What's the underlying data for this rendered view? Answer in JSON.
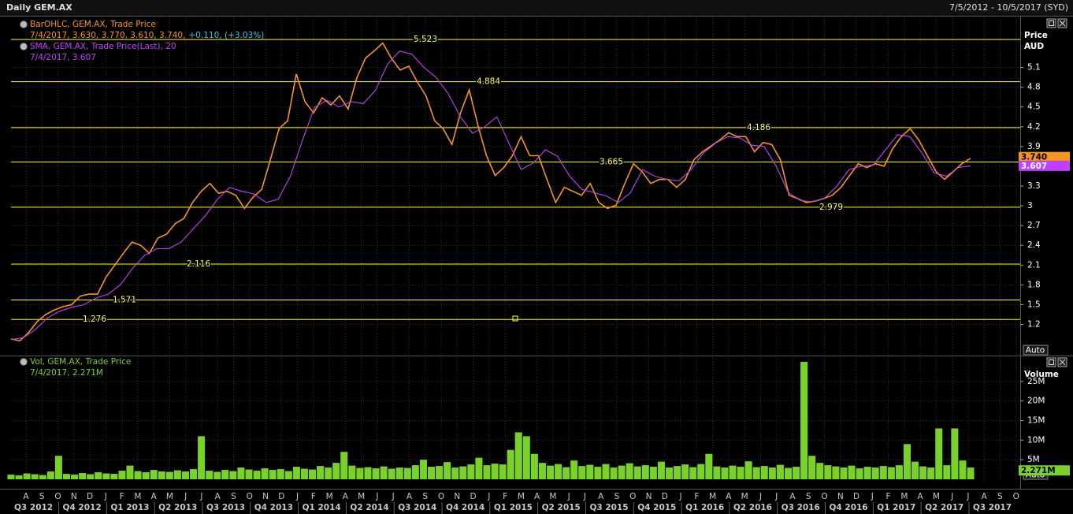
{
  "header": {
    "title": "Daily GEM.AX",
    "range": "7/5/2012 - 10/5/2017 (SYD)"
  },
  "x_axis": {
    "months": [
      "A",
      "S",
      "O",
      "N",
      "D",
      "J",
      "F",
      "M",
      "A",
      "M",
      "J",
      "J",
      "A",
      "S",
      "O",
      "N",
      "D",
      "J",
      "F",
      "M",
      "A",
      "M",
      "J",
      "J",
      "A",
      "S",
      "O",
      "N",
      "D",
      "J",
      "F",
      "M",
      "A",
      "M",
      "J",
      "J",
      "A",
      "S",
      "O",
      "N",
      "D",
      "J",
      "F",
      "M",
      "A",
      "M",
      "J",
      "J",
      "A",
      "S",
      "O",
      "N",
      "D",
      "J",
      "F",
      "M",
      "A",
      "M",
      "J",
      "J",
      "A",
      "S",
      "O"
    ],
    "quarters": [
      "Q3 2012",
      "Q4 2012",
      "Q1 2013",
      "Q2 2013",
      "Q3 2013",
      "Q4 2013",
      "Q1 2014",
      "Q2 2014",
      "Q3 2014",
      "Q4 2014",
      "Q1 2015",
      "Q2 2015",
      "Q3 2015",
      "Q4 2015",
      "Q1 2016",
      "Q2 2016",
      "Q3 2016",
      "Q4 2016",
      "Q1 2017",
      "Q2 2017",
      "Q3 2017"
    ]
  },
  "chart_data": [
    {
      "type": "line",
      "series": [
        {
          "name": "BarOHLC, GEM.AX, Trade Price",
          "color": "#f7941d",
          "legend_detail": "7/4/2017, 3.630, 3.770, 3.610, 3.740,",
          "change": "+0.110, (+3.03%)",
          "change_color": "#36c8e8",
          "values": [
            0.98,
            0.95,
            1.07,
            1.24,
            1.35,
            1.42,
            1.47,
            1.5,
            1.63,
            1.66,
            1.66,
            1.92,
            2.1,
            2.28,
            2.45,
            2.4,
            2.28,
            2.51,
            2.57,
            2.73,
            2.81,
            3.05,
            3.22,
            3.34,
            3.19,
            3.22,
            3.16,
            2.96,
            3.13,
            3.25,
            3.7,
            4.17,
            4.29,
            5.0,
            4.58,
            4.41,
            4.64,
            4.53,
            4.67,
            4.47,
            4.94,
            5.24,
            5.35,
            5.47,
            5.24,
            5.06,
            5.12,
            4.88,
            4.67,
            4.29,
            4.17,
            3.93,
            4.41,
            4.76,
            4.23,
            3.76,
            3.46,
            3.58,
            3.76,
            4.05,
            3.76,
            3.76,
            3.4,
            3.05,
            3.28,
            3.22,
            3.16,
            3.34,
            3.05,
            2.96,
            3.01,
            3.34,
            3.64,
            3.52,
            3.34,
            3.4,
            3.4,
            3.28,
            3.4,
            3.7,
            3.82,
            3.91,
            4.0,
            4.11,
            4.05,
            4.05,
            3.82,
            3.96,
            3.93,
            3.7,
            3.16,
            3.11,
            3.05,
            3.07,
            3.11,
            3.16,
            3.28,
            3.46,
            3.64,
            3.58,
            3.64,
            3.6,
            3.87,
            4.05,
            4.17,
            4.0,
            3.76,
            3.52,
            3.4,
            3.52,
            3.64,
            3.72
          ]
        },
        {
          "name": "SMA, GEM.AX, Trade Price(Last), 20",
          "color": "#c040ff",
          "legend_detail": "7/4/2017, 3.607",
          "values": [
            0.97,
            1.0,
            1.12,
            1.3,
            1.4,
            1.46,
            1.5,
            1.6,
            1.66,
            1.8,
            2.05,
            2.25,
            2.35,
            2.35,
            2.45,
            2.65,
            2.85,
            3.1,
            3.28,
            3.22,
            3.18,
            3.05,
            3.1,
            3.45,
            4.0,
            4.5,
            4.6,
            4.5,
            4.58,
            4.55,
            4.75,
            5.15,
            5.35,
            5.3,
            5.1,
            4.95,
            4.7,
            4.35,
            4.1,
            4.2,
            4.35,
            3.95,
            3.55,
            3.65,
            3.85,
            3.75,
            3.45,
            3.25,
            3.2,
            3.15,
            3.05,
            3.2,
            3.55,
            3.45,
            3.4,
            3.38,
            3.55,
            3.8,
            3.95,
            4.05,
            4.03,
            3.92,
            3.9,
            3.6,
            3.2,
            3.08,
            3.06,
            3.12,
            3.3,
            3.55,
            3.6,
            3.62,
            3.85,
            4.08,
            4.05,
            3.8,
            3.5,
            3.45,
            3.58,
            3.607
          ]
        }
      ],
      "y_axis_title": "Price",
      "y_axis_unit": "AUD",
      "ylim": [
        0.74,
        5.86
      ],
      "yticks": [
        1.2,
        1.5,
        1.8,
        2.1,
        2.4,
        2.7,
        3,
        3.3,
        3.6,
        3.9,
        4.2,
        4.5,
        4.8,
        5.1
      ],
      "levels": [
        5.523,
        4.884,
        4.186,
        3.665,
        2.979,
        2.116,
        1.571,
        1.276
      ],
      "level_color": "#ffff00",
      "last_values": [
        {
          "value": 3.74,
          "label": "3.740"
        },
        {
          "value": 3.607,
          "label": "3.607"
        }
      ],
      "scale_mode": "Auto",
      "grid": true
    },
    {
      "type": "bar",
      "series": [
        {
          "name": "Vol, GEM.AX, Trade Price",
          "color": "#7ad12a",
          "legend_detail": "7/4/2017, 2.271M",
          "values": [
            1.2,
            1.0,
            1.5,
            1.3,
            1.1,
            2.0,
            6.0,
            1.4,
            1.2,
            1.6,
            1.3,
            1.8,
            1.5,
            1.4,
            2.2,
            3.5,
            2.1,
            1.8,
            2.4,
            2.0,
            1.9,
            2.3,
            2.0,
            2.6,
            11.0,
            2.2,
            1.9,
            2.4,
            2.1,
            3.0,
            2.5,
            2.2,
            2.8,
            2.4,
            2.6,
            2.1,
            3.2,
            2.7,
            2.5,
            3.4,
            3.0,
            4.2,
            7.0,
            3.5,
            2.9,
            3.1,
            2.8,
            3.3,
            2.7,
            3.0,
            2.9,
            3.6,
            5.0,
            3.2,
            3.4,
            4.4,
            3.0,
            3.3,
            3.8,
            5.5,
            3.6,
            4.0,
            3.8,
            7.5,
            12.0,
            11.0,
            6.5,
            4.2,
            3.5,
            3.9,
            3.1,
            4.8,
            3.4,
            3.7,
            3.2,
            3.9,
            3.0,
            3.5,
            4.1,
            3.3,
            3.6,
            3.2,
            4.5,
            3.0,
            3.4,
            3.8,
            3.1,
            3.9,
            6.5,
            3.3,
            3.0,
            3.5,
            3.2,
            4.6,
            3.1,
            3.4,
            3.0,
            3.7,
            2.9,
            3.2,
            30.0,
            6.0,
            4.2,
            3.6,
            3.3,
            3.0,
            3.5,
            2.8,
            3.2,
            3.0,
            3.4,
            3.1,
            3.6,
            9.0,
            4.5,
            3.3,
            3.0,
            13.0,
            3.6,
            13.0,
            4.8,
            3.0
          ]
        }
      ],
      "y_axis_title": "Volume",
      "ylim": [
        0,
        30.8
      ],
      "yticks": [
        {
          "value": 5,
          "label": "5M"
        },
        {
          "value": 10,
          "label": "10M"
        },
        {
          "value": 15,
          "label": "15M"
        },
        {
          "value": 20,
          "label": "20M"
        },
        {
          "value": 25,
          "label": "25M"
        }
      ],
      "last_values": [
        {
          "value": 2.271,
          "label": "2.271M"
        }
      ],
      "scale_mode": "Auto",
      "grid": true
    }
  ]
}
